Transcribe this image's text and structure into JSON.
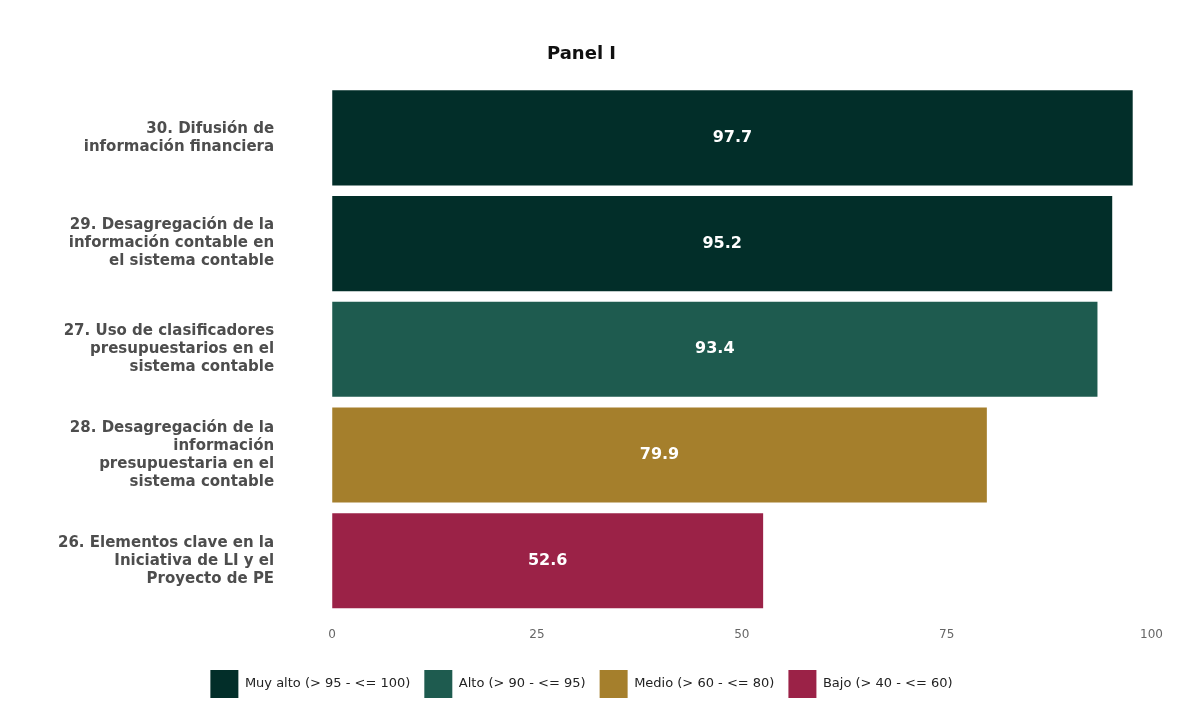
{
  "chart_data": {
    "type": "bar",
    "title": "Panel I",
    "orientation": "horizontal",
    "stacked": true,
    "categories": [
      "30. Difusión de información financiera",
      "29. Desagregación de la información contable en el sistema contable",
      "27. Uso de clasificadores presupuestarios en el sistema contable",
      "28. Desagregación de la información presupuestaria en el sistema contable",
      "26. Elementos clave en la Iniciativa de LI y el Proyecto de PE"
    ],
    "series": [
      {
        "name": "Muy alto (> 95 - <= 100)",
        "color": "#022e29",
        "values": [
          97.7,
          95.2,
          null,
          null,
          null
        ]
      },
      {
        "name": "Alto (> 90 - <= 95)",
        "color": "#1e5b4f",
        "values": [
          null,
          null,
          93.4,
          null,
          null
        ]
      },
      {
        "name": "Medio (> 60 - <= 80)",
        "color": "#a57f2c",
        "values": [
          null,
          null,
          null,
          79.9,
          null
        ]
      },
      {
        "name": "Bajo (> 40 - <= 60)",
        "color": "#9b2247",
        "values": [
          null,
          null,
          null,
          null,
          52.6
        ]
      }
    ],
    "xlim": [
      0,
      100
    ],
    "xticks": [
      0,
      25,
      50,
      75,
      100
    ],
    "grid": false,
    "legend": "bottom",
    "data_labels": true
  }
}
